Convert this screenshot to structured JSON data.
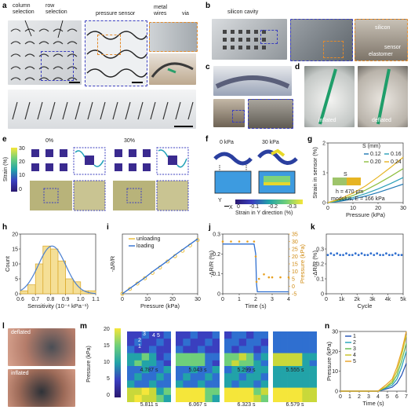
{
  "panels": {
    "a": {
      "label": "a",
      "texts": [
        "column selection",
        "row selection",
        "pressure sensor",
        "metal wires",
        "via"
      ]
    },
    "b": {
      "label": "b",
      "texts": [
        "silicon cavity",
        "silicon",
        "sensor",
        "elastomer"
      ]
    },
    "c": {
      "label": "c"
    },
    "d": {
      "label": "d",
      "texts": [
        "inflated",
        "deflated"
      ]
    },
    "e": {
      "label": "e",
      "texts": [
        "0%",
        "30%",
        "Strain (%)"
      ],
      "colorbar_ticks": [
        "30",
        "20",
        "10",
        "0"
      ]
    },
    "f": {
      "label": "f",
      "texts": [
        "0 kPa",
        "30 kPa",
        "Y",
        "X",
        "Strain in Y direction (%)"
      ],
      "colorbar_ticks": [
        "0",
        "-0.1",
        "-0.2",
        "-0.3"
      ]
    },
    "g": {
      "label": "g",
      "texts": [
        "S (mm)",
        "S",
        "h = 470 μm",
        "modulus, E = 166 kPa"
      ]
    },
    "h": {
      "label": "h"
    },
    "i": {
      "label": "i"
    },
    "j": {
      "label": "j"
    },
    "k": {
      "label": "k"
    },
    "l": {
      "label": "l",
      "texts": [
        "deflated",
        "inflated"
      ]
    },
    "m": {
      "label": "m",
      "texts": [
        "Pressure (kPa)"
      ],
      "colorbar_ticks": [
        "20",
        "15",
        "10",
        "5",
        "0"
      ],
      "frames": [
        "4.787 s",
        "5.043 s",
        "5.299 s",
        "5.555 s",
        "5.811 s",
        "6.067 s",
        "6.323 s",
        "6.579 s"
      ],
      "region_labels": [
        "1",
        "2",
        "3",
        "4",
        "5"
      ]
    },
    "n": {
      "label": "n"
    }
  },
  "chart_data": [
    {
      "panel": "g",
      "type": "line",
      "xlabel": "Pressure (kPa)",
      "ylabel": "Strain in sensor (%)",
      "xlim": [
        0,
        30
      ],
      "ylim": [
        0,
        2
      ],
      "xticks": [
        0,
        10,
        20,
        30
      ],
      "yticks": [
        0,
        1,
        2
      ],
      "legend_title": "S (mm)",
      "series": [
        {
          "name": "0.12",
          "color": "#1f78b4",
          "x": [
            0,
            5,
            10,
            15,
            20,
            25,
            30
          ],
          "y": [
            0,
            0.05,
            0.12,
            0.22,
            0.34,
            0.48,
            0.62
          ]
        },
        {
          "name": "0.16",
          "color": "#2a9fb8",
          "x": [
            0,
            5,
            10,
            15,
            20,
            25,
            30
          ],
          "y": [
            0,
            0.07,
            0.17,
            0.3,
            0.46,
            0.64,
            0.84
          ]
        },
        {
          "name": "0.20",
          "color": "#8fbf3f",
          "x": [
            0,
            5,
            10,
            15,
            20,
            25,
            30
          ],
          "y": [
            0,
            0.1,
            0.24,
            0.42,
            0.64,
            0.88,
            1.14
          ]
        },
        {
          "name": "0.24",
          "color": "#e6b422",
          "x": [
            0,
            5,
            10,
            15,
            20,
            25,
            30
          ],
          "y": [
            0,
            0.13,
            0.32,
            0.56,
            0.86,
            1.18,
            1.52
          ]
        }
      ]
    },
    {
      "panel": "h",
      "type": "bar",
      "xlabel": "Sensitivity (10⁻⁴ kPa⁻¹)",
      "ylabel": "Count",
      "xlim": [
        0.6,
        1.1
      ],
      "ylim": [
        0,
        20
      ],
      "xticks": [
        "0.6",
        "0.7",
        "0.8",
        "0.9",
        "1.0",
        "1.1"
      ],
      "yticks": [
        0,
        5,
        10,
        15,
        20
      ],
      "bin_edges": [
        0.6,
        0.65,
        0.7,
        0.75,
        0.8,
        0.85,
        0.9,
        0.95,
        1.0,
        1.05,
        1.1
      ],
      "values": [
        1,
        3,
        10,
        16,
        15,
        11,
        5,
        4,
        1,
        1
      ],
      "fit_curve": {
        "mean": 0.81,
        "sd": 0.09,
        "peak": 16
      }
    },
    {
      "panel": "i",
      "type": "line",
      "xlabel": "Pressure (kPa)",
      "ylabel": "-ΔR/R",
      "xlim": [
        0,
        30
      ],
      "xticks": [
        0,
        10,
        20,
        30
      ],
      "series": [
        {
          "name": "unloading",
          "color": "#e8b830",
          "style": "markers",
          "x": [
            0,
            3,
            6,
            9,
            12,
            15,
            18,
            21,
            24,
            27,
            30
          ],
          "y": [
            0,
            0.08,
            0.17,
            0.26,
            0.35,
            0.44,
            0.54,
            0.63,
            0.72,
            0.81,
            0.9
          ]
        },
        {
          "name": "loading",
          "color": "#2f6fd0",
          "style": "line",
          "x": [
            0,
            3,
            6,
            9,
            12,
            15,
            18,
            21,
            24,
            27,
            30
          ],
          "y": [
            0,
            0.09,
            0.18,
            0.27,
            0.37,
            0.46,
            0.55,
            0.65,
            0.74,
            0.83,
            0.92
          ]
        }
      ]
    },
    {
      "panel": "j",
      "type": "line",
      "xlabel": "Time (s)",
      "ylabel": "-ΔR/R (%)",
      "y2label": "Pressure (kPa)",
      "xlim": [
        0,
        4
      ],
      "xticks": [
        0,
        1,
        2,
        3,
        4
      ],
      "ylim": [
        0,
        0.3
      ],
      "yticks": [
        "0",
        "0.1",
        "0.2",
        "0.3"
      ],
      "y2lim": [
        -5,
        35
      ],
      "y2ticks": [
        "35",
        "30",
        "25",
        "20",
        "15",
        "10",
        "5",
        "0",
        "-5"
      ],
      "series": [
        {
          "name": "-ΔR/R",
          "color": "#2f6fd0",
          "x": [
            0,
            0.5,
            1,
            1.5,
            1.9,
            2.0,
            2.05,
            2.1,
            2.5,
            3,
            3.5,
            4
          ],
          "y": [
            0.25,
            0.25,
            0.25,
            0.25,
            0.25,
            0.2,
            0.05,
            0.01,
            0.01,
            0.01,
            0.01,
            0.01
          ]
        },
        {
          "name": "Pressure",
          "color": "#e8a020",
          "x": [
            0,
            0.5,
            1,
            1.5,
            1.9,
            2.0,
            2.05,
            2.2,
            2.5,
            2.8,
            3,
            3.5,
            4
          ],
          "y": [
            30,
            30,
            30,
            30,
            30,
            20,
            3,
            5,
            8,
            6,
            6,
            6,
            6
          ]
        }
      ]
    },
    {
      "panel": "k",
      "type": "scatter",
      "xlabel": "Cycle",
      "ylabel": "-ΔR/R (%)",
      "xlim": [
        0,
        5000
      ],
      "xticks": [
        "0",
        "1k",
        "2k",
        "3k",
        "4k",
        "5k"
      ],
      "ylim": [
        0,
        0.4
      ],
      "yticks": [
        "0",
        "0.1",
        "0.2",
        "0.3"
      ],
      "series": [
        {
          "name": "",
          "color": "#2f6fd0",
          "x": [
            100,
            300,
            500,
            700,
            900,
            1100,
            1300,
            1500,
            1700,
            1900,
            2100,
            2300,
            2500,
            2700,
            2900,
            3100,
            3300,
            3500,
            3700,
            3900,
            4100,
            4300,
            4500,
            4700,
            4900
          ],
          "y": [
            0.26,
            0.27,
            0.26,
            0.27,
            0.26,
            0.26,
            0.27,
            0.26,
            0.26,
            0.27,
            0.26,
            0.27,
            0.26,
            0.26,
            0.27,
            0.26,
            0.27,
            0.26,
            0.26,
            0.27,
            0.26,
            0.26,
            0.27,
            0.26,
            0.26
          ]
        }
      ]
    },
    {
      "panel": "n",
      "type": "line",
      "xlabel": "Time (s)",
      "ylabel": "Pressure (kPa)",
      "xlim": [
        0,
        7
      ],
      "xticks": [
        0,
        1,
        2,
        3,
        4,
        5,
        6,
        7
      ],
      "ylim": [
        0,
        30
      ],
      "yticks": [
        0,
        10,
        20,
        30
      ],
      "series": [
        {
          "name": "1",
          "color": "#1f4fb4",
          "x": [
            0,
            1,
            2,
            3,
            4,
            4.8,
            5.5,
            6,
            6.5,
            7
          ],
          "y": [
            0,
            0,
            0,
            0,
            0,
            1,
            2,
            4,
            8,
            14
          ]
        },
        {
          "name": "2",
          "color": "#1fa0b8",
          "x": [
            0,
            1,
            2,
            3,
            4,
            4.8,
            5.5,
            6,
            6.5,
            7
          ],
          "y": [
            0,
            0,
            0,
            0,
            0,
            1.5,
            3,
            6,
            12,
            20
          ]
        },
        {
          "name": "3",
          "color": "#5cb84a",
          "x": [
            0,
            1,
            2,
            3,
            4,
            4.8,
            5.5,
            6,
            6.5,
            7
          ],
          "y": [
            0,
            0,
            0,
            0,
            0,
            2,
            4,
            8,
            15,
            24
          ]
        },
        {
          "name": "4",
          "color": "#c8c020",
          "x": [
            0,
            1,
            2,
            3,
            4,
            4.8,
            5.5,
            6,
            6.5,
            7
          ],
          "y": [
            0,
            0,
            0,
            0,
            0,
            2,
            5,
            10,
            18,
            28
          ]
        },
        {
          "name": "5",
          "color": "#e8a020",
          "x": [
            0,
            1,
            2,
            3,
            4,
            4.8,
            5.5,
            6,
            6.5,
            7
          ],
          "y": [
            0,
            0,
            0,
            0,
            0,
            3,
            6,
            12,
            20,
            30
          ]
        }
      ]
    }
  ],
  "colors": {
    "accent_blue": "#3b3fbf",
    "accent_orange": "#e38a2a"
  }
}
